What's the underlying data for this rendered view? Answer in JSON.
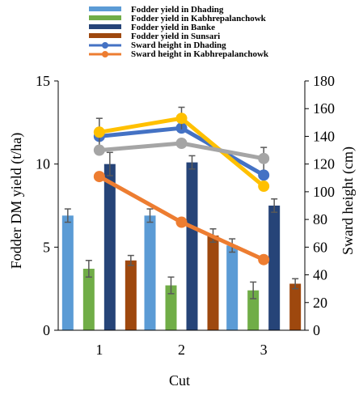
{
  "chart_data": {
    "type": "bar",
    "categories": [
      "1",
      "2",
      "3"
    ],
    "xlabel": "Cut",
    "ylabel": "Fodder DM yield (t/ha)",
    "y2label": "Sward height (cm)",
    "ylim": [
      0,
      15
    ],
    "y2lim": [
      0,
      180
    ],
    "yticks": [
      "0",
      "5",
      "10",
      "15"
    ],
    "y2ticks": [
      "0",
      "20",
      "40",
      "60",
      "80",
      "100",
      "120",
      "140",
      "160",
      "180"
    ],
    "grid": false,
    "legend_position": "top",
    "bar_series": [
      {
        "name": "Fodder yield  in Dhading",
        "values": [
          6.9,
          6.9,
          5.1
        ],
        "errors": [
          0.4,
          0.4,
          0.4
        ],
        "color": "#5b9bd5"
      },
      {
        "name": "Fodder yield  in Kabhrepalanchowk",
        "values": [
          3.7,
          2.7,
          2.4
        ],
        "errors": [
          0.5,
          0.5,
          0.5
        ],
        "color": "#70ad47"
      },
      {
        "name": "Fodder yield  in Banke",
        "values": [
          10.0,
          10.1,
          7.5
        ],
        "errors": [
          0.7,
          0.4,
          0.4
        ],
        "color": "#264478"
      },
      {
        "name": "Fodder yield  in Sunsari",
        "values": [
          4.2,
          5.7,
          2.8
        ],
        "errors": [
          0.3,
          0.4,
          0.3
        ],
        "color": "#9e480e"
      }
    ],
    "line_series": [
      {
        "name": "Sward height in Dhading",
        "values": [
          140,
          146,
          112
        ],
        "color": "#4472c4",
        "legend": true
      },
      {
        "name": "Sward height in Kabhrepalanchowk",
        "values": [
          111,
          78,
          51
        ],
        "color": "#ed7d31",
        "legend": true
      },
      {
        "name": "",
        "values": [
          143,
          153,
          104
        ],
        "errors": [
          10,
          8,
          0
        ],
        "color": "#ffc000",
        "legend": false
      },
      {
        "name": "",
        "values": [
          130,
          135,
          124
        ],
        "errors": [
          0,
          0,
          8
        ],
        "color": "#a5a5a5",
        "legend": false
      }
    ]
  }
}
